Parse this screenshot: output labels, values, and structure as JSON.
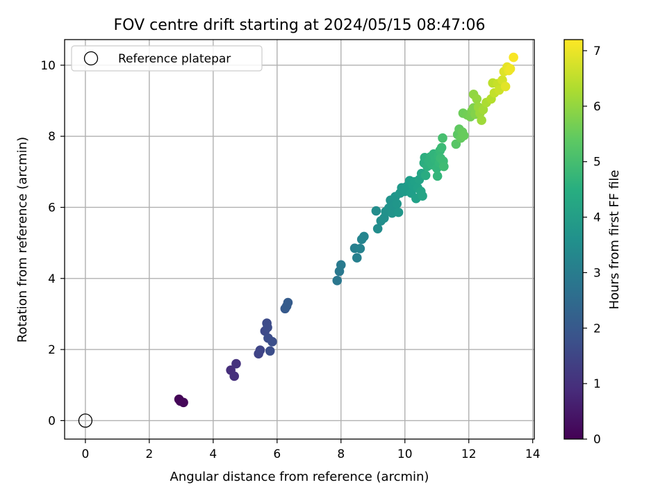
{
  "chart_data": {
    "type": "scatter",
    "title": "FOV centre drift starting at 2024/05/15 08:47:06",
    "xlabel": "Angular distance from reference (arcmin)",
    "ylabel": "Rotation from reference (arcmin)",
    "xlim": [
      -0.65,
      14.05
    ],
    "ylim": [
      -0.52,
      10.72
    ],
    "xticks": [
      "0",
      "2",
      "4",
      "6",
      "8",
      "10",
      "12",
      "14"
    ],
    "yticks": [
      "0",
      "2",
      "4",
      "6",
      "8",
      "10"
    ],
    "grid": true,
    "legend": {
      "position": "top-left",
      "entries": [
        "Reference platepar"
      ]
    },
    "reference_point": {
      "x": 0,
      "y": 0
    },
    "colorbar": {
      "label": "Hours from first FF file",
      "range": [
        0,
        7.2
      ],
      "ticks": [
        "0",
        "1",
        "2",
        "3",
        "4",
        "5",
        "6",
        "7"
      ],
      "colormap": "viridis"
    },
    "series": [
      {
        "points": [
          {
            "x": 2.93,
            "y": 0.6,
            "c": 0.05
          },
          {
            "x": 2.97,
            "y": 0.55,
            "c": 0.08
          },
          {
            "x": 3.07,
            "y": 0.51,
            "c": 0.12
          },
          {
            "x": 4.55,
            "y": 1.42,
            "c": 0.95
          },
          {
            "x": 4.66,
            "y": 1.25,
            "c": 1.0
          },
          {
            "x": 4.72,
            "y": 1.6,
            "c": 1.05
          },
          {
            "x": 5.42,
            "y": 1.88,
            "c": 1.45
          },
          {
            "x": 5.47,
            "y": 1.98,
            "c": 1.5
          },
          {
            "x": 5.62,
            "y": 2.52,
            "c": 1.6
          },
          {
            "x": 5.68,
            "y": 2.74,
            "c": 1.65
          },
          {
            "x": 5.7,
            "y": 2.62,
            "c": 1.68
          },
          {
            "x": 5.72,
            "y": 2.32,
            "c": 1.7
          },
          {
            "x": 5.78,
            "y": 1.96,
            "c": 1.72
          },
          {
            "x": 5.85,
            "y": 2.22,
            "c": 1.75
          },
          {
            "x": 6.25,
            "y": 3.15,
            "c": 2.05
          },
          {
            "x": 6.3,
            "y": 3.22,
            "c": 2.08
          },
          {
            "x": 6.34,
            "y": 3.32,
            "c": 2.1
          },
          {
            "x": 7.88,
            "y": 3.94,
            "c": 2.85
          },
          {
            "x": 7.95,
            "y": 4.2,
            "c": 2.9
          },
          {
            "x": 8.0,
            "y": 4.38,
            "c": 2.95
          },
          {
            "x": 8.43,
            "y": 4.85,
            "c": 3.1
          },
          {
            "x": 8.5,
            "y": 4.58,
            "c": 3.15
          },
          {
            "x": 8.6,
            "y": 4.84,
            "c": 3.2
          },
          {
            "x": 8.65,
            "y": 5.1,
            "c": 3.25
          },
          {
            "x": 8.72,
            "y": 5.18,
            "c": 3.28
          },
          {
            "x": 9.1,
            "y": 5.9,
            "c": 3.5
          },
          {
            "x": 9.15,
            "y": 5.4,
            "c": 3.52
          },
          {
            "x": 9.25,
            "y": 5.62,
            "c": 3.55
          },
          {
            "x": 9.35,
            "y": 5.7,
            "c": 3.6
          },
          {
            "x": 9.4,
            "y": 5.88,
            "c": 3.62
          },
          {
            "x": 9.5,
            "y": 5.98,
            "c": 3.65
          },
          {
            "x": 9.55,
            "y": 6.2,
            "c": 3.68
          },
          {
            "x": 9.6,
            "y": 5.84,
            "c": 3.7
          },
          {
            "x": 9.65,
            "y": 6.05,
            "c": 3.72
          },
          {
            "x": 9.7,
            "y": 6.3,
            "c": 3.75
          },
          {
            "x": 9.75,
            "y": 6.1,
            "c": 3.78
          },
          {
            "x": 9.8,
            "y": 5.86,
            "c": 3.8
          },
          {
            "x": 9.85,
            "y": 6.4,
            "c": 3.82
          },
          {
            "x": 9.9,
            "y": 6.55,
            "c": 3.85
          },
          {
            "x": 10.0,
            "y": 6.45,
            "c": 3.9
          },
          {
            "x": 10.05,
            "y": 6.58,
            "c": 3.92
          },
          {
            "x": 10.1,
            "y": 6.5,
            "c": 3.95
          },
          {
            "x": 10.15,
            "y": 6.75,
            "c": 4.0
          },
          {
            "x": 10.2,
            "y": 6.4,
            "c": 4.02
          },
          {
            "x": 10.25,
            "y": 6.62,
            "c": 4.05
          },
          {
            "x": 10.3,
            "y": 6.72,
            "c": 4.08
          },
          {
            "x": 10.35,
            "y": 6.25,
            "c": 4.1
          },
          {
            "x": 10.4,
            "y": 6.55,
            "c": 4.12
          },
          {
            "x": 10.45,
            "y": 6.78,
            "c": 4.15
          },
          {
            "x": 10.5,
            "y": 6.45,
            "c": 4.18
          },
          {
            "x": 10.55,
            "y": 6.32,
            "c": 4.2
          },
          {
            "x": 10.52,
            "y": 6.95,
            "c": 4.22
          },
          {
            "x": 10.6,
            "y": 7.25,
            "c": 4.45
          },
          {
            "x": 10.62,
            "y": 7.4,
            "c": 4.5
          },
          {
            "x": 10.65,
            "y": 6.9,
            "c": 4.4
          },
          {
            "x": 10.7,
            "y": 7.15,
            "c": 4.55
          },
          {
            "x": 10.75,
            "y": 7.3,
            "c": 4.6
          },
          {
            "x": 10.8,
            "y": 7.42,
            "c": 4.62
          },
          {
            "x": 10.85,
            "y": 7.2,
            "c": 4.65
          },
          {
            "x": 10.9,
            "y": 7.5,
            "c": 4.68
          },
          {
            "x": 10.95,
            "y": 7.35,
            "c": 4.7
          },
          {
            "x": 11.0,
            "y": 7.1,
            "c": 4.72
          },
          {
            "x": 11.02,
            "y": 6.88,
            "c": 4.75
          },
          {
            "x": 11.05,
            "y": 7.45,
            "c": 4.78
          },
          {
            "x": 11.08,
            "y": 7.25,
            "c": 4.8
          },
          {
            "x": 11.1,
            "y": 7.6,
            "c": 4.85
          },
          {
            "x": 11.12,
            "y": 7.38,
            "c": 4.88
          },
          {
            "x": 11.15,
            "y": 7.68,
            "c": 4.9
          },
          {
            "x": 11.18,
            "y": 7.95,
            "c": 5.05
          },
          {
            "x": 11.2,
            "y": 7.3,
            "c": 4.92
          },
          {
            "x": 11.22,
            "y": 7.15,
            "c": 4.95
          },
          {
            "x": 11.6,
            "y": 7.78,
            "c": 5.3
          },
          {
            "x": 11.65,
            "y": 8.05,
            "c": 5.35
          },
          {
            "x": 11.7,
            "y": 8.2,
            "c": 5.4
          },
          {
            "x": 11.75,
            "y": 7.95,
            "c": 5.45
          },
          {
            "x": 11.8,
            "y": 8.12,
            "c": 5.5
          },
          {
            "x": 11.85,
            "y": 8.02,
            "c": 5.52
          },
          {
            "x": 11.82,
            "y": 8.65,
            "c": 5.6
          },
          {
            "x": 11.95,
            "y": 8.6,
            "c": 5.65
          },
          {
            "x": 12.05,
            "y": 8.55,
            "c": 5.7
          },
          {
            "x": 12.1,
            "y": 8.72,
            "c": 5.75
          },
          {
            "x": 12.15,
            "y": 8.8,
            "c": 5.8
          },
          {
            "x": 12.2,
            "y": 8.62,
            "c": 5.85
          },
          {
            "x": 12.15,
            "y": 9.18,
            "c": 6.0
          },
          {
            "x": 12.25,
            "y": 9.05,
            "c": 6.05
          },
          {
            "x": 12.3,
            "y": 8.82,
            "c": 6.1
          },
          {
            "x": 12.35,
            "y": 8.65,
            "c": 6.12
          },
          {
            "x": 12.4,
            "y": 8.45,
            "c": 6.15
          },
          {
            "x": 12.45,
            "y": 8.75,
            "c": 6.2
          },
          {
            "x": 12.55,
            "y": 8.95,
            "c": 6.3
          },
          {
            "x": 12.7,
            "y": 9.05,
            "c": 6.4
          },
          {
            "x": 12.75,
            "y": 9.5,
            "c": 6.5
          },
          {
            "x": 12.8,
            "y": 9.22,
            "c": 6.55
          },
          {
            "x": 12.9,
            "y": 9.48,
            "c": 6.6
          },
          {
            "x": 12.95,
            "y": 9.3,
            "c": 6.65
          },
          {
            "x": 13.05,
            "y": 9.58,
            "c": 6.75
          },
          {
            "x": 13.1,
            "y": 9.82,
            "c": 6.85
          },
          {
            "x": 13.15,
            "y": 9.4,
            "c": 6.9
          },
          {
            "x": 13.2,
            "y": 9.95,
            "c": 6.95
          },
          {
            "x": 13.25,
            "y": 9.85,
            "c": 7.0
          },
          {
            "x": 13.3,
            "y": 9.9,
            "c": 7.05
          },
          {
            "x": 13.4,
            "y": 10.22,
            "c": 7.15
          }
        ]
      }
    ]
  }
}
